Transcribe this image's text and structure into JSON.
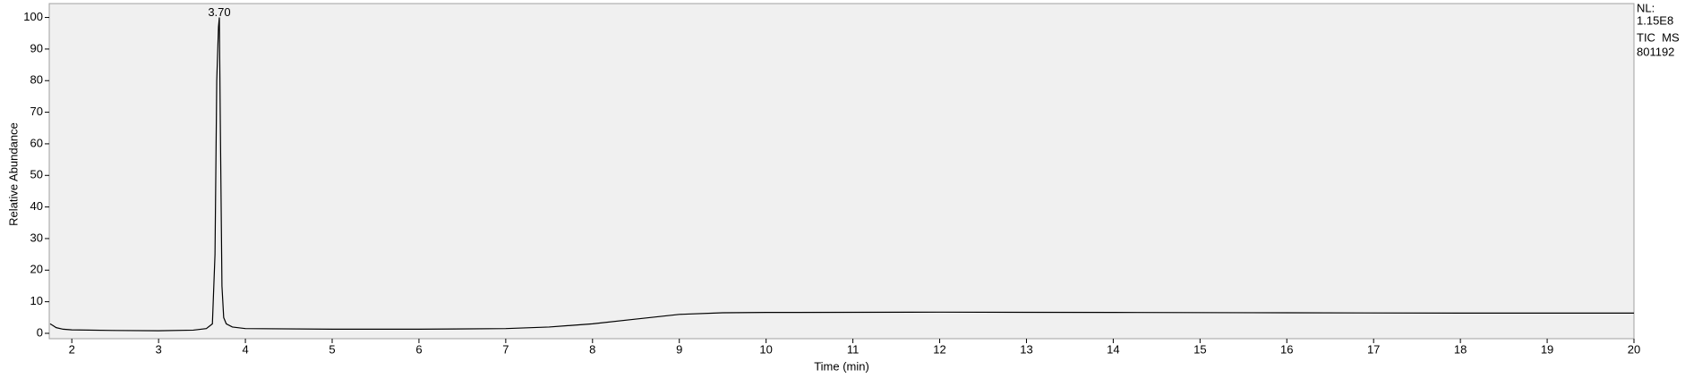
{
  "chart_data": {
    "type": "line",
    "xlabel": "Time (min)",
    "ylabel": "Relative Abundance",
    "x": [
      1.75,
      1.78,
      1.82,
      1.9,
      2.0,
      2.5,
      3.0,
      3.4,
      3.55,
      3.62,
      3.65,
      3.67,
      3.69,
      3.7,
      3.71,
      3.73,
      3.75,
      3.78,
      3.85,
      4.0,
      5.0,
      6.0,
      7.0,
      7.5,
      8.0,
      8.5,
      9.0,
      9.5,
      10.0,
      12.0,
      14.0,
      16.0,
      18.0,
      20.0
    ],
    "series": [
      {
        "name": "TIC MS",
        "color": "#000000",
        "values": [
          3,
          2.5,
          1.8,
          1.3,
          1.1,
          0.9,
          0.8,
          1.0,
          1.5,
          3,
          25,
          80,
          97,
          100,
          70,
          15,
          5,
          3,
          2,
          1.5,
          1.3,
          1.3,
          1.5,
          2,
          3,
          4.5,
          6,
          6.5,
          6.6,
          6.7,
          6.6,
          6.5,
          6.4,
          6.4
        ]
      }
    ],
    "xlim": [
      1.74,
      20
    ],
    "ylim": [
      -1.7,
      104.4
    ],
    "xticks": [
      2,
      3,
      4,
      5,
      6,
      7,
      8,
      9,
      10,
      11,
      12,
      13,
      14,
      15,
      16,
      17,
      18,
      19,
      20
    ],
    "yticks": [
      0,
      10,
      20,
      30,
      40,
      50,
      60,
      70,
      80,
      90,
      100
    ],
    "annotations": [
      {
        "label": "3.70",
        "x": 3.7,
        "y": 100
      }
    ],
    "notes": [
      "NL:",
      "1.15E8",
      "TIC  MS",
      "801192"
    ]
  }
}
